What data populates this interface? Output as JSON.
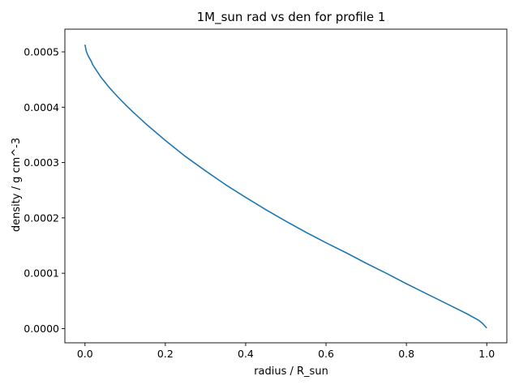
{
  "chart_data": {
    "type": "line",
    "title": "1M_sun rad vs den for profile 1",
    "xlabel": "radius / R_sun",
    "ylabel": "density / g cm^-3",
    "xlim": [
      -0.05,
      1.05
    ],
    "ylim": [
      -2.57e-05,
      0.000541
    ],
    "xticks": [
      0.0,
      0.2,
      0.4,
      0.6,
      0.8,
      1.0
    ],
    "xtick_labels": [
      "0.0",
      "0.2",
      "0.4",
      "0.6",
      "0.8",
      "1.0"
    ],
    "yticks": [
      0.0,
      0.0001,
      0.0002,
      0.0003,
      0.0004,
      0.0005
    ],
    "ytick_labels": [
      "0.0000",
      "0.0001",
      "0.0002",
      "0.0003",
      "0.0004",
      "0.0005"
    ],
    "grid": false,
    "legend": false,
    "series": [
      {
        "color": "#1f77b4",
        "x": [
          0.0,
          0.003,
          0.006,
          0.01,
          0.015,
          0.02,
          0.03,
          0.04,
          0.05,
          0.06,
          0.08,
          0.1,
          0.12,
          0.15,
          0.2,
          0.25,
          0.3,
          0.35,
          0.4,
          0.45,
          0.5,
          0.55,
          0.6,
          0.65,
          0.7,
          0.75,
          0.8,
          0.85,
          0.9,
          0.95,
          0.98,
          0.99,
          1.0
        ],
        "y": [
          0.000513,
          0.000502,
          0.000496,
          0.00049,
          0.000484,
          0.000476,
          0.000465,
          0.000454,
          0.000445,
          0.000436,
          0.00042,
          0.000405,
          0.000391,
          0.000371,
          0.00034,
          0.000311,
          0.000285,
          0.00026,
          0.000237,
          0.000215,
          0.000194,
          0.000174,
          0.000155,
          0.000137,
          0.000118,
          0.0001,
          8.1e-05,
          6.3e-05,
          4.5e-05,
          2.7e-05,
          1.5e-05,
          9e-06,
          1e-06
        ]
      }
    ]
  }
}
